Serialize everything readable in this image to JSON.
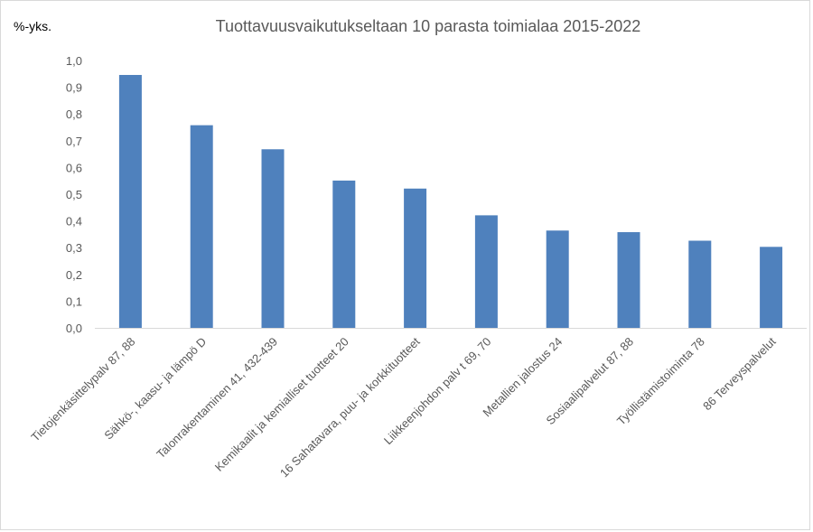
{
  "chart_data": {
    "type": "bar",
    "title": "Tuottavuusvaikutukseltaan 10 parasta toimialaa 2015-2022",
    "ylabel": "%-yks.",
    "xlabel": "",
    "ylim": [
      0,
      1.0
    ],
    "yticks": [
      "0,0",
      "0,1",
      "0,2",
      "0,3",
      "0,4",
      "0,5",
      "0,6",
      "0,7",
      "0,8",
      "0,9",
      "1,0"
    ],
    "grid": false,
    "legend": "none",
    "bar_color": "#4f81bd",
    "categories": [
      "Tietojenkäsittelypalv 87, 88",
      "Sähkö-, kaasu- ja lämpö D",
      "Talonrakentaminen 41, 432-439",
      "Kemikaalit ja kemialliset tuotteet 20",
      "16 Sahatavara, puu- ja korkkituotteet",
      "Liikkeenjohdon palv t 69, 70",
      "Metallien jalostus 24",
      "Sosiaalipalvelut 87, 88",
      "Työllistämistoiminta 78",
      "86 Terveyspalvelut"
    ],
    "values": [
      0.946,
      0.758,
      0.668,
      0.551,
      0.521,
      0.421,
      0.364,
      0.358,
      0.326,
      0.303
    ]
  }
}
